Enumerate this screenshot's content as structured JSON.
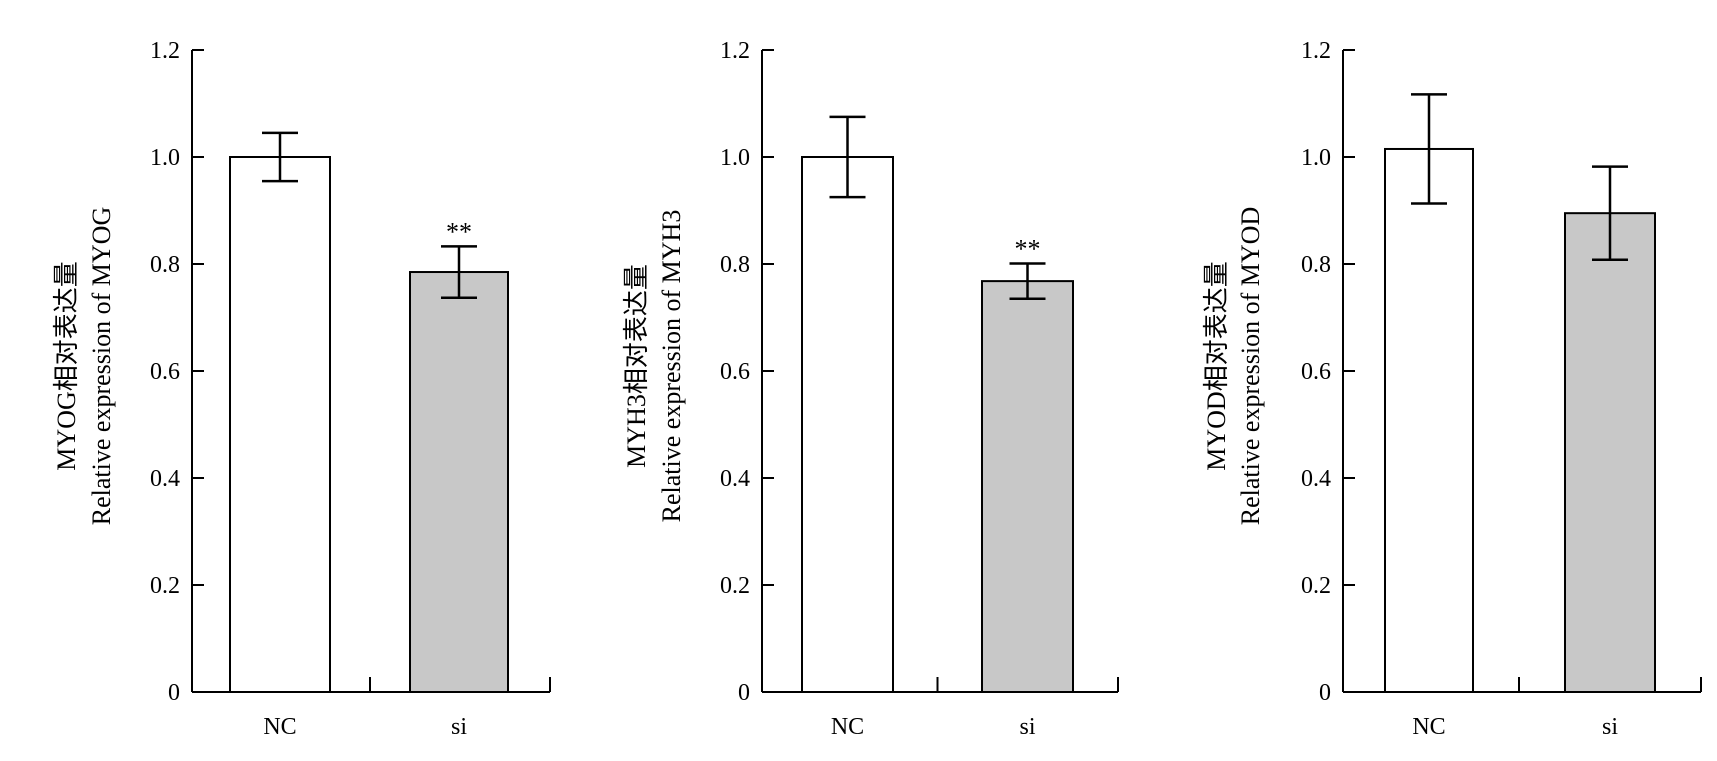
{
  "chart_data": [
    {
      "type": "bar",
      "categories": [
        "NC",
        "si"
      ],
      "values": [
        1.0,
        0.785
      ],
      "errors": [
        0.045,
        0.048
      ],
      "significance": [
        "",
        "**"
      ],
      "bar_colors": [
        "#ffffff",
        "#c8c8c8"
      ],
      "ylabel_lines": [
        "MYOG相对表达量",
        "Relative expression of MYOG"
      ],
      "ylim": [
        0,
        1.2
      ],
      "yticks": [
        "0",
        "0.2",
        "0.4",
        "0.6",
        "0.8",
        "1.0",
        "1.2"
      ]
    },
    {
      "type": "bar",
      "categories": [
        "NC",
        "si"
      ],
      "values": [
        1.0,
        0.768
      ],
      "errors": [
        0.075,
        0.033
      ],
      "significance": [
        "",
        "**"
      ],
      "bar_colors": [
        "#ffffff",
        "#c8c8c8"
      ],
      "ylabel_lines": [
        "MYH3相对表达量",
        "Relative expression of MYH3"
      ],
      "ylim": [
        0,
        1.2
      ],
      "yticks": [
        "0",
        "0.2",
        "0.4",
        "0.6",
        "0.8",
        "1.0",
        "1.2"
      ]
    },
    {
      "type": "bar",
      "categories": [
        "NC",
        "si"
      ],
      "values": [
        1.015,
        0.895
      ],
      "errors": [
        0.102,
        0.087
      ],
      "significance": [
        "",
        ""
      ],
      "bar_colors": [
        "#ffffff",
        "#c8c8c8"
      ],
      "ylabel_lines": [
        "MYOD相对表达量",
        "Relative expression of MYOD"
      ],
      "ylim": [
        0,
        1.2
      ],
      "yticks": [
        "0",
        "0.2",
        "0.4",
        "0.6",
        "0.8",
        "1.0",
        "1.2"
      ]
    }
  ]
}
